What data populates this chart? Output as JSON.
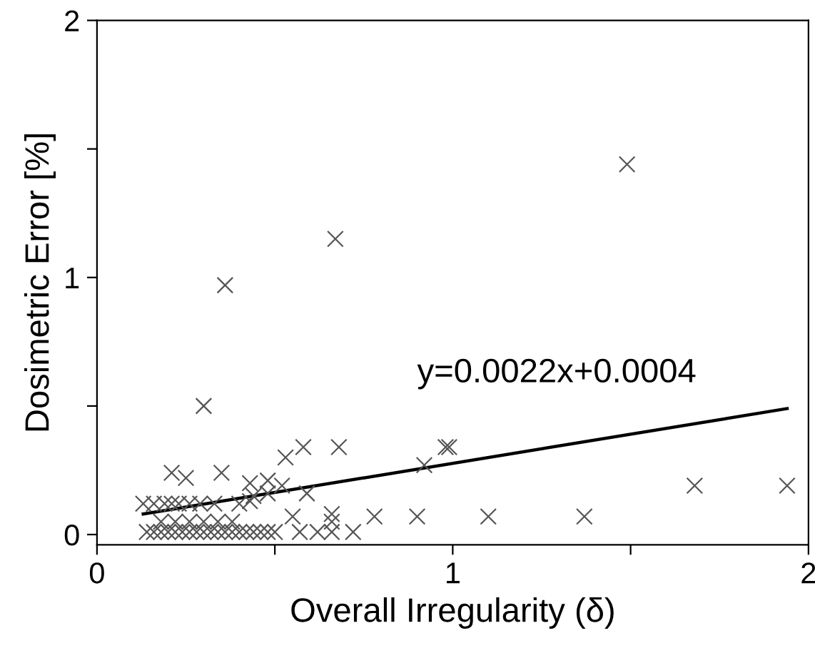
{
  "chart_data": {
    "type": "scatter",
    "xlabel": "Overall Irregularity (δ)",
    "ylabel": "Dosimetric Error [%]",
    "xlim": [
      0,
      2
    ],
    "ylim": [
      -0.04,
      2
    ],
    "xticks": [
      0,
      {
        "value": 0.5,
        "label": null
      },
      1,
      {
        "value": 1.5,
        "label": null
      },
      2
    ],
    "yticks": [
      0,
      {
        "value": 0.5,
        "label": null
      },
      1,
      {
        "value": 1.5,
        "label": null
      },
      2
    ],
    "grid": false,
    "legend": false,
    "marker": "cross",
    "annotations": [
      "y=0.0022x+0.0004"
    ],
    "series": [
      {
        "color": "#555555",
        "x": [
          1.49,
          0.67,
          0.36,
          0.3,
          0.21,
          0.25,
          0.35,
          0.53,
          0.58,
          0.68,
          0.43,
          0.48,
          0.52,
          0.59,
          0.44,
          0.48,
          0.13,
          0.16,
          0.19,
          0.21,
          0.23,
          0.26,
          0.29,
          0.33,
          0.4,
          0.43,
          0.55,
          0.66,
          0.66,
          0.78,
          0.18,
          0.22,
          0.26,
          0.3,
          0.34,
          0.38,
          0.14,
          0.16,
          0.18,
          0.2,
          0.22,
          0.24,
          0.26,
          0.28,
          0.3,
          0.32,
          0.34,
          0.36,
          0.38,
          0.4,
          0.42,
          0.44,
          0.46,
          0.48,
          0.5,
          0.57,
          0.62,
          0.66,
          0.72,
          0.9,
          1.1,
          1.37,
          1.68,
          1.94,
          0.92,
          0.98,
          0.99
        ],
        "values": [
          1.44,
          1.15,
          0.97,
          0.5,
          0.24,
          0.22,
          0.24,
          0.3,
          0.34,
          0.34,
          0.2,
          0.21,
          0.19,
          0.16,
          0.15,
          0.16,
          0.12,
          0.12,
          0.12,
          0.12,
          0.12,
          0.12,
          0.12,
          0.12,
          0.12,
          0.13,
          0.07,
          0.08,
          0.05,
          0.07,
          0.05,
          0.05,
          0.05,
          0.05,
          0.05,
          0.05,
          0.01,
          0.01,
          0.01,
          0.01,
          0.01,
          0.01,
          0.01,
          0.01,
          0.01,
          0.01,
          0.01,
          0.01,
          0.01,
          0.01,
          0.01,
          0.01,
          0.01,
          0.01,
          0.01,
          0.01,
          0.01,
          0.01,
          0.01,
          0.07,
          0.07,
          0.07,
          0.19,
          0.19,
          0.27,
          0.34,
          0.34
        ]
      },
      {
        "type": "line",
        "color": "#000000",
        "x": [
          0.13,
          1.94
        ],
        "values": [
          0.08,
          0.49
        ],
        "marker": "none",
        "line_style": "solid"
      }
    ]
  }
}
